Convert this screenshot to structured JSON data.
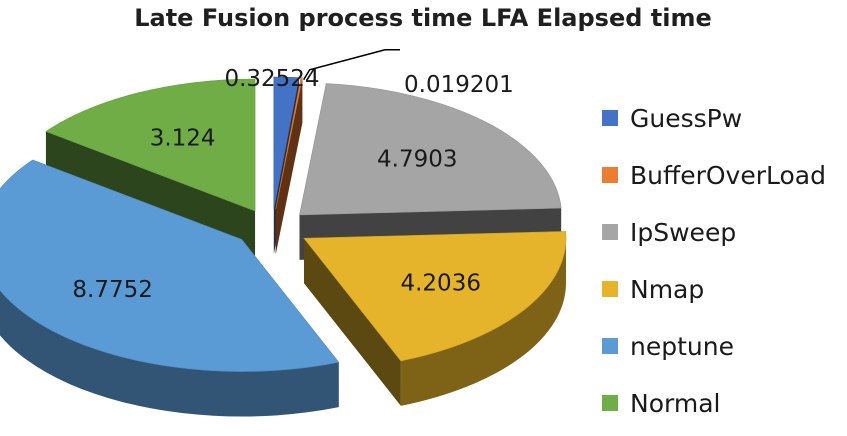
{
  "chart_data": {
    "type": "pie",
    "subtype": "3d-exploded",
    "title": "Late Fusion process time LFA Elapsed time",
    "legend_position": "right",
    "categories": [
      "GuessPw",
      "BufferOverLoad",
      "IpSweep",
      "Nmap",
      "neptune",
      "Normal"
    ],
    "values": [
      0.32524,
      0.019201,
      4.7903,
      4.2036,
      8.7752,
      3.124
    ],
    "labels": [
      "0.32524",
      "0.019201",
      "4.7903",
      "4.2036",
      "8.7752",
      "3.124"
    ],
    "colors": [
      "#4472c4",
      "#ed7d31",
      "#a5a5a5",
      "#e5b42a",
      "#5b9bd5",
      "#70ad47"
    ]
  }
}
